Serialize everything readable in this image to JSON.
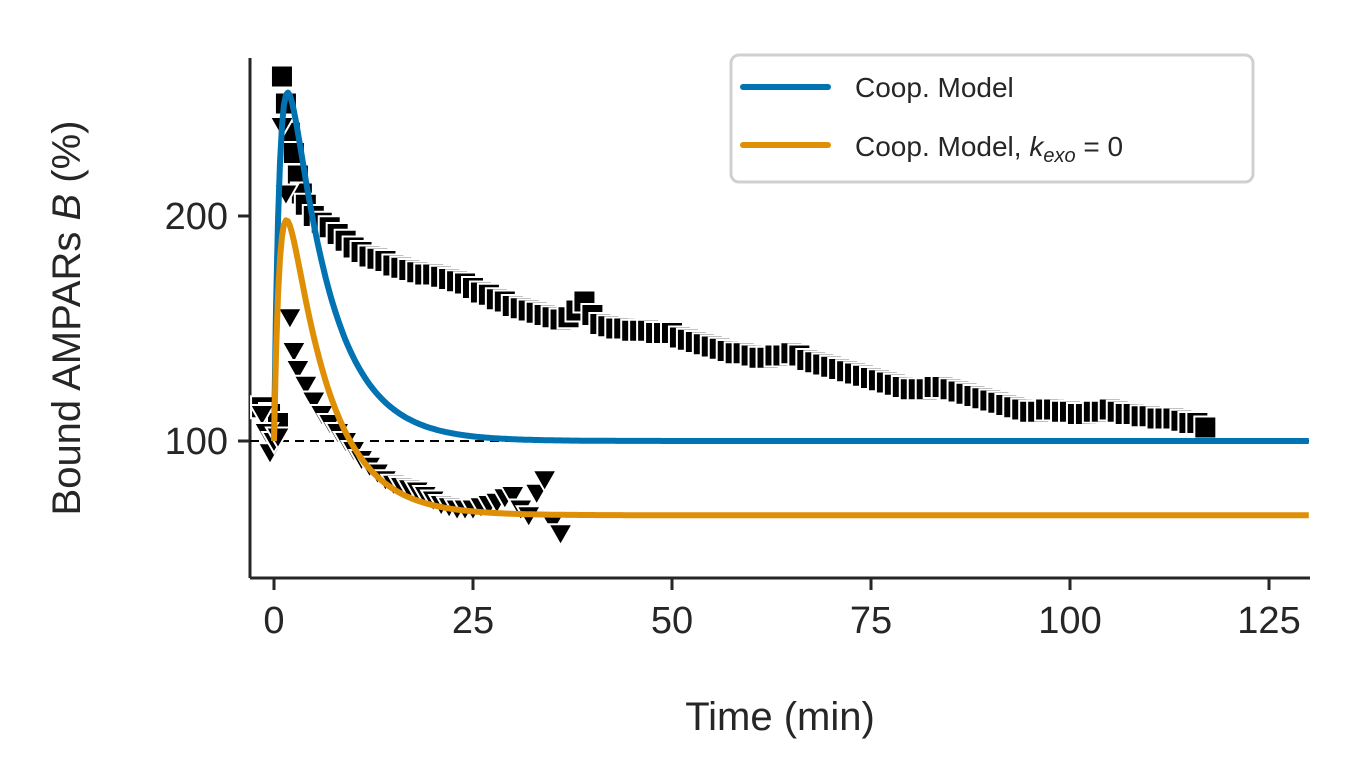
{
  "chart_data": {
    "type": "line",
    "xlabel": "Time (min)",
    "ylabel": {
      "before": "Bound AMPARs ",
      "italic": "B",
      "after": " (%)"
    },
    "xlim": [
      -1.5,
      130
    ],
    "ylim": [
      40,
      270
    ],
    "xticks": [
      0,
      25,
      50,
      75,
      100,
      125
    ],
    "yticks": [
      100,
      200
    ],
    "reference_line": {
      "y": 100,
      "style": "dashed"
    },
    "grid": false,
    "legend": {
      "placement": "top-right"
    },
    "series": [
      {
        "name": "Coop. Model",
        "kind": "line",
        "color": "#0173b2",
        "model": {
          "baseline": 100,
          "peak_rise": 253,
          "tau_rise": 0.9,
          "tau_decay": 5.2
        }
      },
      {
        "name_parts": {
          "text": "Coop. Model, ",
          "k": "k",
          "sub": "exo",
          "tail": " = 0"
        },
        "kind": "line",
        "color": "#de8f05",
        "model": {
          "baseline": 100,
          "plateau": 67,
          "peak_rise": 175,
          "tau_rise": 0.9,
          "tau_decay": 5.2
        }
      },
      {
        "kind": "scatter",
        "marker": "square",
        "color": "#000000",
        "points": [
          [
            -1.5,
            115
          ],
          [
            -0.5,
            112
          ],
          [
            0.5,
            108
          ],
          [
            1,
            262
          ],
          [
            1.5,
            250
          ],
          [
            2,
            237
          ],
          [
            2.5,
            228
          ],
          [
            3,
            218
          ],
          [
            3.5,
            210
          ],
          [
            4,
            205
          ],
          [
            5,
            200
          ],
          [
            6,
            197
          ],
          [
            7,
            195
          ],
          [
            8,
            192
          ],
          [
            9,
            189
          ],
          [
            10,
            186
          ],
          [
            11,
            184
          ],
          [
            12,
            182
          ],
          [
            13,
            181
          ],
          [
            14,
            180
          ],
          [
            15,
            178
          ],
          [
            16,
            177
          ],
          [
            17,
            176
          ],
          [
            18,
            175
          ],
          [
            19,
            174
          ],
          [
            20,
            174
          ],
          [
            21,
            173
          ],
          [
            22,
            172
          ],
          [
            23,
            171
          ],
          [
            24,
            170
          ],
          [
            25,
            168
          ],
          [
            26,
            166
          ],
          [
            27,
            165
          ],
          [
            28,
            163
          ],
          [
            29,
            162
          ],
          [
            30,
            160
          ],
          [
            31,
            159
          ],
          [
            32,
            158
          ],
          [
            33,
            157
          ],
          [
            34,
            156
          ],
          [
            35,
            155
          ],
          [
            36,
            154
          ],
          [
            37,
            155
          ],
          [
            38,
            158
          ],
          [
            39,
            162
          ],
          [
            40,
            156
          ],
          [
            41,
            152
          ],
          [
            42,
            151
          ],
          [
            43,
            150
          ],
          [
            44,
            150
          ],
          [
            45,
            149
          ],
          [
            46,
            149
          ],
          [
            47,
            149
          ],
          [
            48,
            148
          ],
          [
            49,
            148
          ],
          [
            50,
            148
          ],
          [
            51,
            146
          ],
          [
            52,
            145
          ],
          [
            53,
            144
          ],
          [
            54,
            143
          ],
          [
            55,
            142
          ],
          [
            56,
            141
          ],
          [
            57,
            140
          ],
          [
            58,
            139
          ],
          [
            59,
            139
          ],
          [
            60,
            138
          ],
          [
            61,
            137
          ],
          [
            62,
            137
          ],
          [
            63,
            138
          ],
          [
            64,
            138
          ],
          [
            65,
            139
          ],
          [
            66,
            138
          ],
          [
            67,
            136
          ],
          [
            68,
            135
          ],
          [
            69,
            134
          ],
          [
            70,
            133
          ],
          [
            71,
            132
          ],
          [
            72,
            131
          ],
          [
            73,
            130
          ],
          [
            74,
            129
          ],
          [
            75,
            128
          ],
          [
            76,
            127
          ],
          [
            77,
            126
          ],
          [
            78,
            125
          ],
          [
            79,
            124
          ],
          [
            80,
            123
          ],
          [
            81,
            123
          ],
          [
            82,
            123
          ],
          [
            83,
            124
          ],
          [
            84,
            124
          ],
          [
            85,
            123
          ],
          [
            86,
            122
          ],
          [
            87,
            121
          ],
          [
            88,
            120
          ],
          [
            89,
            119
          ],
          [
            90,
            118
          ],
          [
            91,
            117
          ],
          [
            92,
            116
          ],
          [
            93,
            115
          ],
          [
            94,
            114
          ],
          [
            95,
            113
          ],
          [
            96,
            113
          ],
          [
            97,
            114
          ],
          [
            98,
            114
          ],
          [
            99,
            113
          ],
          [
            100,
            113
          ],
          [
            101,
            112
          ],
          [
            102,
            112
          ],
          [
            103,
            113
          ],
          [
            104,
            113
          ],
          [
            105,
            114
          ],
          [
            106,
            113
          ],
          [
            107,
            112
          ],
          [
            108,
            112
          ],
          [
            109,
            111
          ],
          [
            110,
            111
          ],
          [
            111,
            110
          ],
          [
            112,
            110
          ],
          [
            113,
            110
          ],
          [
            114,
            109
          ],
          [
            115,
            108
          ],
          [
            116,
            108
          ],
          [
            117,
            106
          ]
        ]
      },
      {
        "kind": "scatter",
        "marker": "triangle-down",
        "color": "#000000",
        "points": [
          [
            -1.5,
            112
          ],
          [
            -1,
            104
          ],
          [
            -0.5,
            95
          ],
          [
            0,
            100
          ],
          [
            0.5,
            102
          ],
          [
            1,
            240
          ],
          [
            1.5,
            210
          ],
          [
            2,
            155
          ],
          [
            2.5,
            140
          ],
          [
            3,
            132
          ],
          [
            4,
            125
          ],
          [
            5,
            118
          ],
          [
            6,
            112
          ],
          [
            7,
            108
          ],
          [
            8,
            104
          ],
          [
            9,
            100
          ],
          [
            10,
            96
          ],
          [
            11,
            92
          ],
          [
            12,
            89
          ],
          [
            13,
            86
          ],
          [
            14,
            83
          ],
          [
            15,
            81
          ],
          [
            16,
            80
          ],
          [
            17,
            79
          ],
          [
            18,
            78
          ],
          [
            19,
            76
          ],
          [
            20,
            74
          ],
          [
            21,
            72
          ],
          [
            22,
            71
          ],
          [
            23,
            70
          ],
          [
            24,
            70
          ],
          [
            25,
            70
          ],
          [
            26,
            71
          ],
          [
            27,
            72
          ],
          [
            28,
            73
          ],
          [
            29,
            75
          ],
          [
            30,
            76
          ],
          [
            31,
            70
          ],
          [
            32,
            67
          ],
          [
            33,
            77
          ],
          [
            34,
            83
          ],
          [
            35,
            64
          ],
          [
            36,
            59
          ]
        ]
      }
    ]
  }
}
